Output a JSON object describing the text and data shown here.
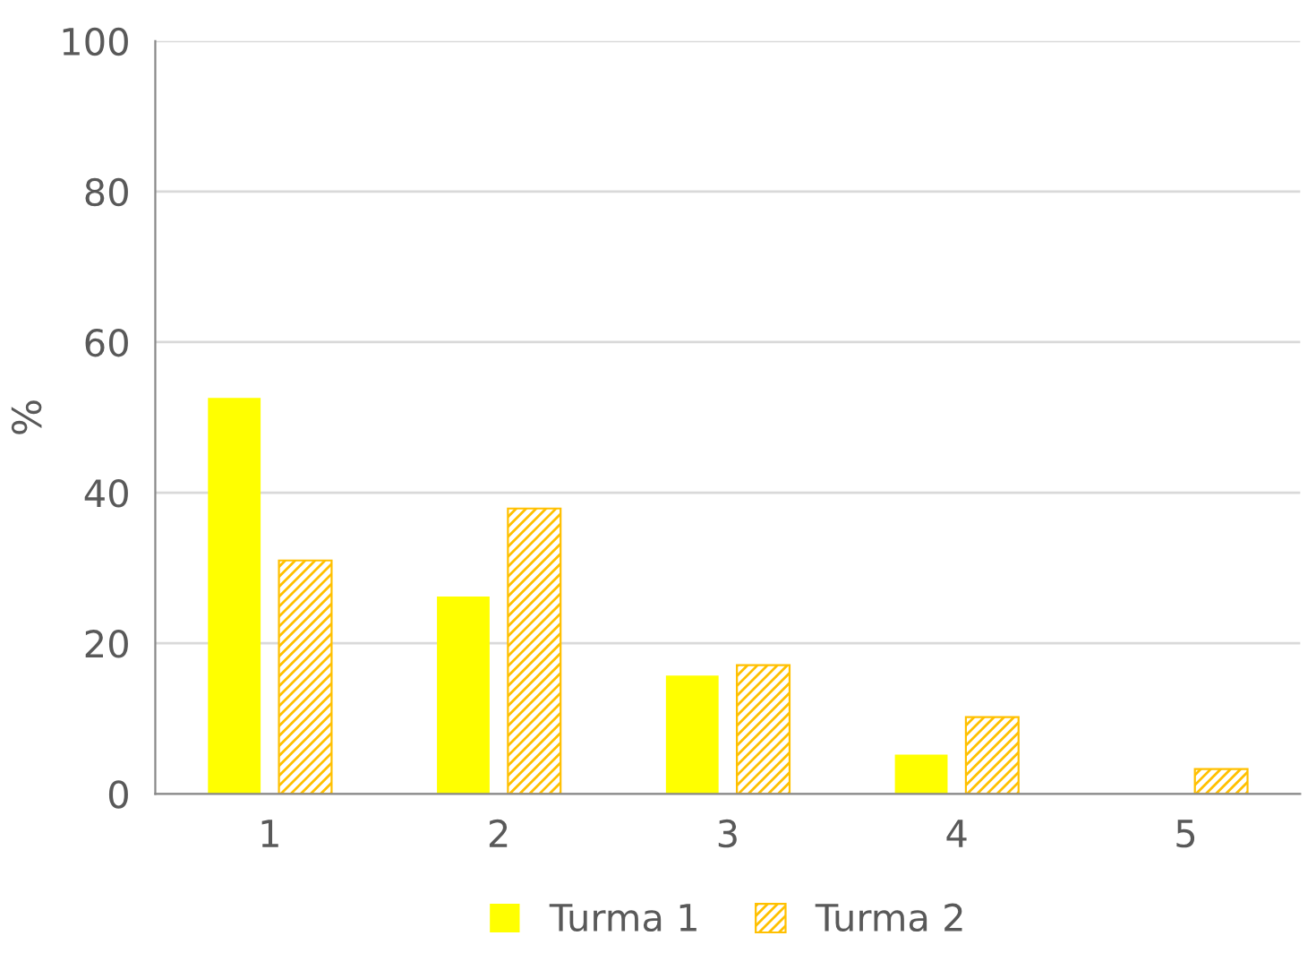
{
  "chart_data": {
    "type": "bar",
    "ylabel": "%",
    "categories": [
      "1",
      "2",
      "3",
      "4",
      "5"
    ],
    "series": [
      {
        "name": "Turma 1",
        "color": "#ffff00",
        "values": [
          52.6,
          26.2,
          15.7,
          5.2,
          0
        ]
      },
      {
        "name": "Turma 2",
        "color": "#ffc000",
        "values": [
          31,
          37.9,
          17.1,
          10.2,
          3.3
        ]
      }
    ],
    "ylim": [
      0,
      100
    ],
    "yticks": [
      0,
      20,
      40,
      60,
      80,
      100
    ],
    "grid": "y",
    "legend": "bottom"
  }
}
